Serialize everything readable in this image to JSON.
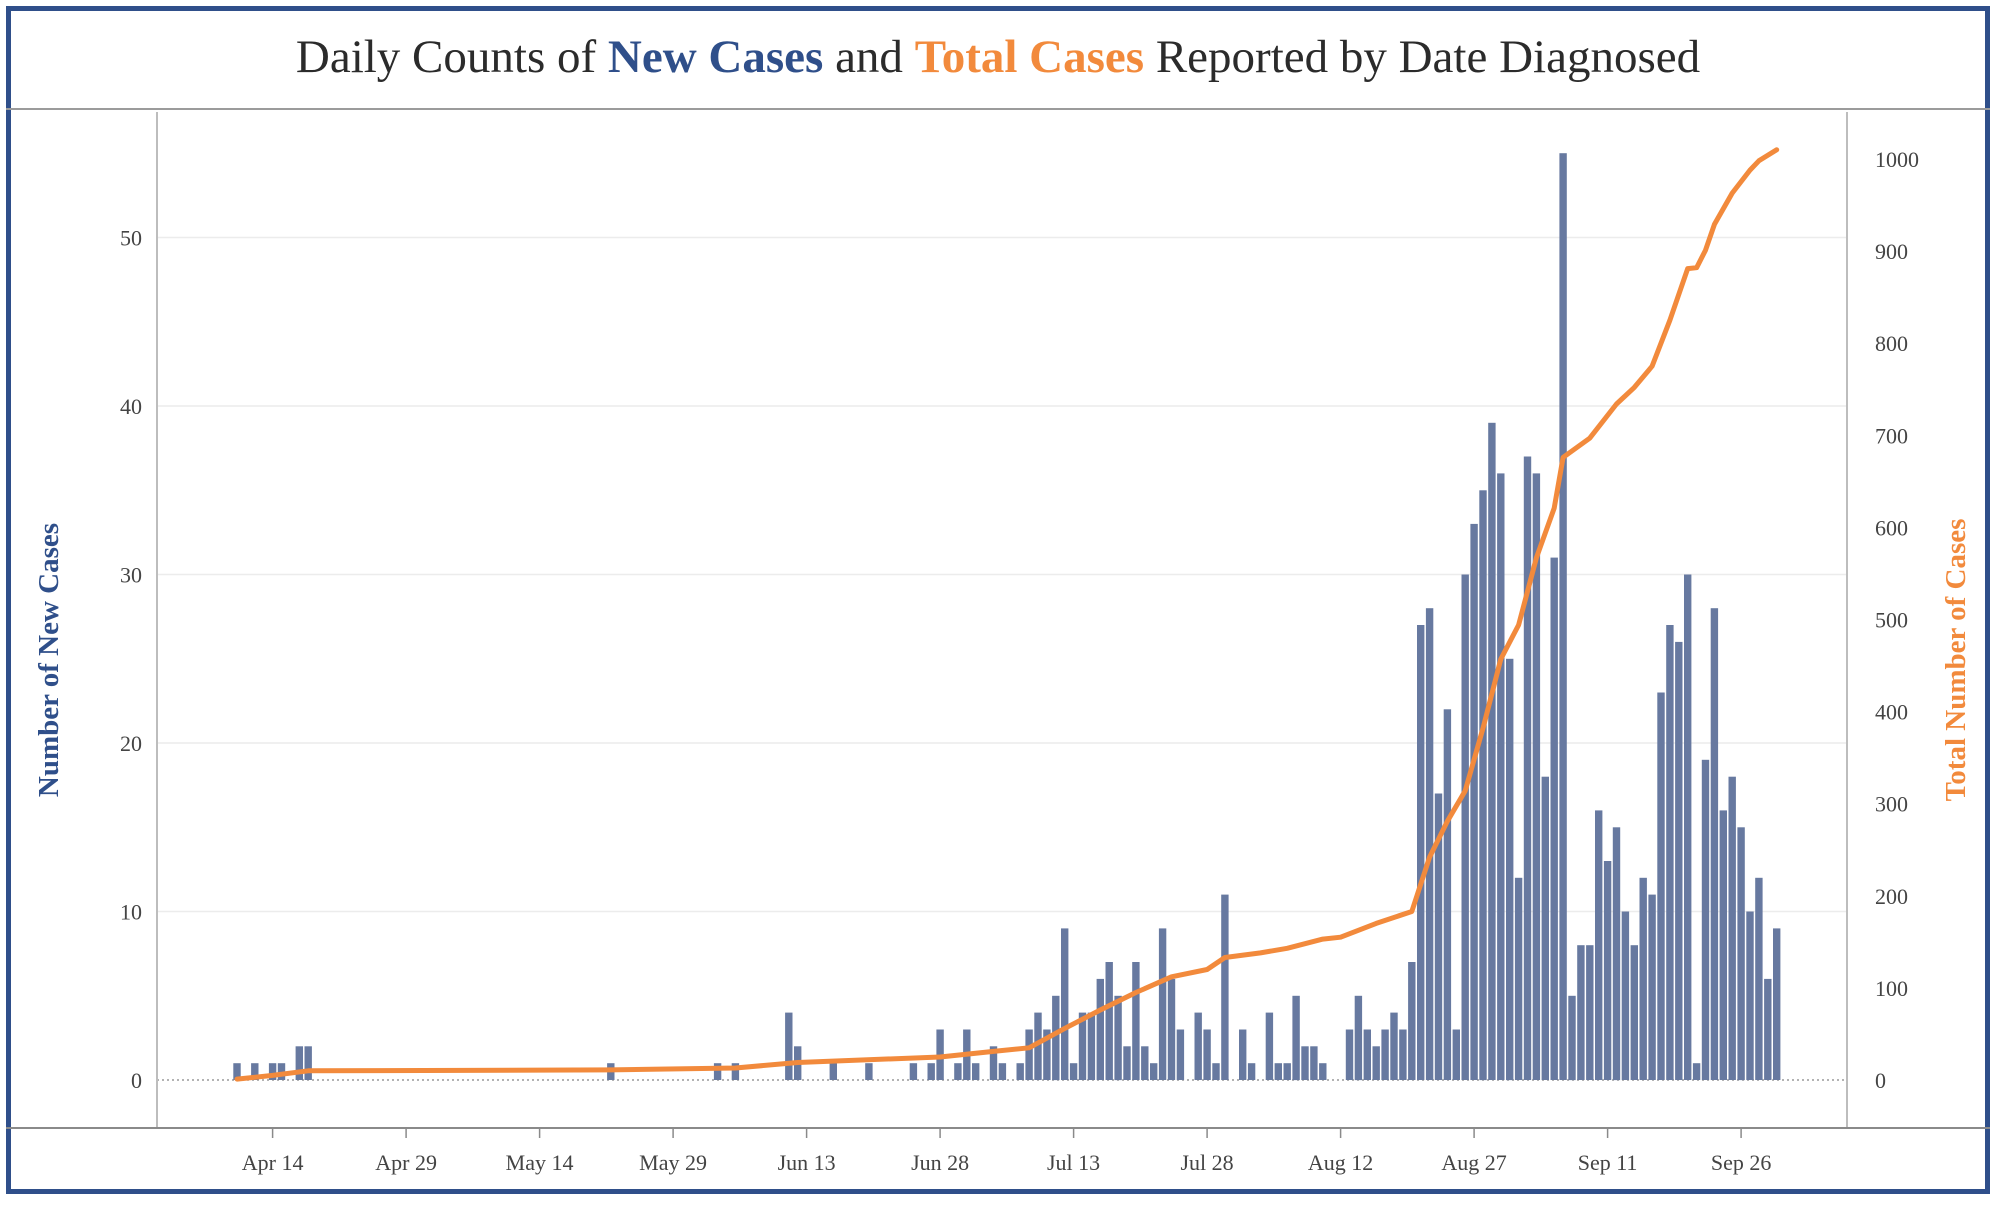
{
  "title": {
    "prefix": "Daily Counts of ",
    "new_cases": "New Cases",
    "middle": " and ",
    "total_cases": "Total Cases",
    "suffix": " Reported by Date Diagnosed"
  },
  "colors": {
    "bars": "#6779a0",
    "line": "#f28a3c",
    "title_new": "#2f4f8a",
    "title_total": "#f28a3c",
    "frame": "#2f4f8a"
  },
  "chart_data": {
    "type": "bar",
    "title": "Daily Counts of New Cases and Total Cases Reported by Date Diagnosed",
    "ylabel": "Number of New Cases",
    "y2label": "Total Number of Cases",
    "ylim": [
      0,
      57
    ],
    "y2lim": [
      0,
      1039
    ],
    "yticks": [
      0,
      10,
      20,
      30,
      40,
      50
    ],
    "y2ticks": [
      0,
      100,
      200,
      300,
      400,
      500,
      600,
      700,
      800,
      900,
      1000
    ],
    "xticks": [
      {
        "date": "2020-04-14",
        "label": "Apr 14"
      },
      {
        "date": "2020-04-29",
        "label": "Apr 29"
      },
      {
        "date": "2020-05-14",
        "label": "May 14"
      },
      {
        "date": "2020-05-29",
        "label": "May 29"
      },
      {
        "date": "2020-06-13",
        "label": "Jun 13"
      },
      {
        "date": "2020-06-28",
        "label": "Jun 28"
      },
      {
        "date": "2020-07-13",
        "label": "Jul 13"
      },
      {
        "date": "2020-07-28",
        "label": "Jul 28"
      },
      {
        "date": "2020-08-12",
        "label": "Aug 12"
      },
      {
        "date": "2020-08-27",
        "label": "Aug 27"
      },
      {
        "date": "2020-09-11",
        "label": "Sep 11"
      },
      {
        "date": "2020-09-26",
        "label": "Sep 26"
      }
    ],
    "x_start": "2020-04-10",
    "x_end": "2020-10-01",
    "grid": true,
    "series": [
      {
        "name": "New Cases",
        "type": "bar",
        "points": [
          [
            "2020-04-10",
            1
          ],
          [
            "2020-04-12",
            1
          ],
          [
            "2020-04-14",
            1
          ],
          [
            "2020-04-15",
            1
          ],
          [
            "2020-04-17",
            2
          ],
          [
            "2020-04-18",
            2
          ],
          [
            "2020-05-22",
            1
          ],
          [
            "2020-06-03",
            1
          ],
          [
            "2020-06-05",
            1
          ],
          [
            "2020-06-11",
            4
          ],
          [
            "2020-06-12",
            2
          ],
          [
            "2020-06-16",
            1
          ],
          [
            "2020-06-20",
            1
          ],
          [
            "2020-06-25",
            1
          ],
          [
            "2020-06-27",
            1
          ],
          [
            "2020-06-28",
            3
          ],
          [
            "2020-06-30",
            1
          ],
          [
            "2020-07-01",
            3
          ],
          [
            "2020-07-02",
            1
          ],
          [
            "2020-07-04",
            2
          ],
          [
            "2020-07-05",
            1
          ],
          [
            "2020-07-07",
            1
          ],
          [
            "2020-07-08",
            3
          ],
          [
            "2020-07-09",
            4
          ],
          [
            "2020-07-10",
            3
          ],
          [
            "2020-07-11",
            5
          ],
          [
            "2020-07-12",
            9
          ],
          [
            "2020-07-13",
            1
          ],
          [
            "2020-07-14",
            4
          ],
          [
            "2020-07-15",
            4
          ],
          [
            "2020-07-16",
            6
          ],
          [
            "2020-07-17",
            7
          ],
          [
            "2020-07-18",
            5
          ],
          [
            "2020-07-19",
            2
          ],
          [
            "2020-07-20",
            7
          ],
          [
            "2020-07-21",
            2
          ],
          [
            "2020-07-22",
            1
          ],
          [
            "2020-07-23",
            9
          ],
          [
            "2020-07-24",
            6
          ],
          [
            "2020-07-25",
            3
          ],
          [
            "2020-07-27",
            4
          ],
          [
            "2020-07-28",
            3
          ],
          [
            "2020-07-29",
            1
          ],
          [
            "2020-07-30",
            11
          ],
          [
            "2020-08-01",
            3
          ],
          [
            "2020-08-02",
            1
          ],
          [
            "2020-08-04",
            4
          ],
          [
            "2020-08-05",
            1
          ],
          [
            "2020-08-06",
            1
          ],
          [
            "2020-08-07",
            5
          ],
          [
            "2020-08-08",
            2
          ],
          [
            "2020-08-09",
            2
          ],
          [
            "2020-08-10",
            1
          ],
          [
            "2020-08-13",
            3
          ],
          [
            "2020-08-14",
            5
          ],
          [
            "2020-08-15",
            3
          ],
          [
            "2020-08-16",
            2
          ],
          [
            "2020-08-17",
            3
          ],
          [
            "2020-08-18",
            4
          ],
          [
            "2020-08-19",
            3
          ],
          [
            "2020-08-20",
            7
          ],
          [
            "2020-08-21",
            27
          ],
          [
            "2020-08-22",
            28
          ],
          [
            "2020-08-23",
            17
          ],
          [
            "2020-08-24",
            22
          ],
          [
            "2020-08-25",
            3
          ],
          [
            "2020-08-26",
            30
          ],
          [
            "2020-08-27",
            33
          ],
          [
            "2020-08-28",
            35
          ],
          [
            "2020-08-29",
            39
          ],
          [
            "2020-08-30",
            36
          ],
          [
            "2020-08-31",
            25
          ],
          [
            "2020-09-01",
            12
          ],
          [
            "2020-09-02",
            37
          ],
          [
            "2020-09-03",
            36
          ],
          [
            "2020-09-04",
            18
          ],
          [
            "2020-09-05",
            31
          ],
          [
            "2020-09-06",
            55
          ],
          [
            "2020-09-07",
            5
          ],
          [
            "2020-09-08",
            8
          ],
          [
            "2020-09-09",
            8
          ],
          [
            "2020-09-10",
            16
          ],
          [
            "2020-09-11",
            13
          ],
          [
            "2020-09-12",
            15
          ],
          [
            "2020-09-13",
            10
          ],
          [
            "2020-09-14",
            8
          ],
          [
            "2020-09-15",
            12
          ],
          [
            "2020-09-16",
            11
          ],
          [
            "2020-09-17",
            23
          ],
          [
            "2020-09-18",
            27
          ],
          [
            "2020-09-19",
            26
          ],
          [
            "2020-09-20",
            30
          ],
          [
            "2020-09-21",
            1
          ],
          [
            "2020-09-22",
            19
          ],
          [
            "2020-09-23",
            28
          ],
          [
            "2020-09-24",
            16
          ],
          [
            "2020-09-25",
            18
          ],
          [
            "2020-09-26",
            15
          ],
          [
            "2020-09-27",
            10
          ],
          [
            "2020-09-28",
            12
          ],
          [
            "2020-09-29",
            6
          ],
          [
            "2020-09-30",
            9
          ]
        ]
      },
      {
        "name": "Total Cases",
        "type": "line",
        "axis": "right",
        "points": [
          [
            "2020-04-10",
            1
          ],
          [
            "2020-04-14",
            5
          ],
          [
            "2020-04-18",
            10
          ],
          [
            "2020-05-22",
            11
          ],
          [
            "2020-06-05",
            13
          ],
          [
            "2020-06-12",
            19
          ],
          [
            "2020-06-28",
            25
          ],
          [
            "2020-07-04",
            31
          ],
          [
            "2020-07-08",
            35
          ],
          [
            "2020-07-12",
            56
          ],
          [
            "2020-07-16",
            76
          ],
          [
            "2020-07-20",
            95
          ],
          [
            "2020-07-24",
            112
          ],
          [
            "2020-07-28",
            120
          ],
          [
            "2020-07-30",
            133
          ],
          [
            "2020-08-03",
            138
          ],
          [
            "2020-08-06",
            143
          ],
          [
            "2020-08-10",
            153
          ],
          [
            "2020-08-12",
            155
          ],
          [
            "2020-08-16",
            170
          ],
          [
            "2020-08-20",
            183
          ],
          [
            "2020-08-22",
            242
          ],
          [
            "2020-08-24",
            281
          ],
          [
            "2020-08-26",
            314
          ],
          [
            "2020-08-28",
            382
          ],
          [
            "2020-08-30",
            457
          ],
          [
            "2020-09-01",
            494
          ],
          [
            "2020-09-03",
            567
          ],
          [
            "2020-09-05",
            621
          ],
          [
            "2020-09-06",
            676
          ],
          [
            "2020-09-09",
            697
          ],
          [
            "2020-09-12",
            734
          ],
          [
            "2020-09-14",
            752
          ],
          [
            "2020-09-16",
            775
          ],
          [
            "2020-09-18",
            825
          ],
          [
            "2020-09-20",
            881
          ],
          [
            "2020-09-21",
            882
          ],
          [
            "2020-09-22",
            901
          ],
          [
            "2020-09-23",
            929
          ],
          [
            "2020-09-25",
            963
          ],
          [
            "2020-09-27",
            988
          ],
          [
            "2020-09-28",
            998
          ],
          [
            "2020-09-30",
            1010
          ]
        ]
      }
    ]
  }
}
